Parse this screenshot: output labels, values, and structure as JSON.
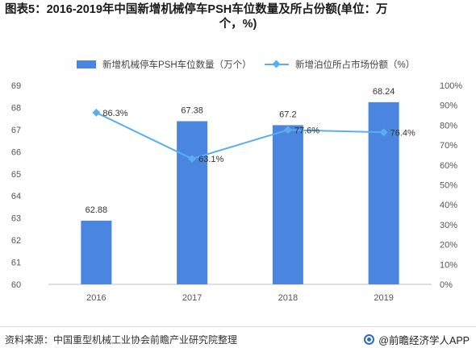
{
  "title": {
    "line1": "图表5：2016-2019年中国新增机械停车PSH车位数量及所占份额(单位：万",
    "line2": "个，%)"
  },
  "legend": {
    "bar_label": "新增机械停车PSH车位数量（万个）",
    "line_label": "新增泊位所占市场份额（%）"
  },
  "footer": {
    "source": "资料来源：中国重型机械工业协会前瞻产业研究院整理",
    "brand": "@前瞻经济学人APP"
  },
  "colors": {
    "bar": "#4a86e0",
    "line": "#5aaef0"
  },
  "chart_data": {
    "type": "bar",
    "categories": [
      "2016",
      "2017",
      "2018",
      "2019"
    ],
    "series": [
      {
        "name": "新增机械停车PSH车位数量（万个）",
        "type": "bar",
        "axis": "left",
        "values": [
          62.88,
          67.38,
          67.2,
          68.24
        ],
        "labels": [
          "62.88",
          "67.38",
          "67.2",
          "68.24"
        ]
      },
      {
        "name": "新增泊位所占市场份额（%）",
        "type": "line",
        "axis": "right",
        "values": [
          86.3,
          63.1,
          77.6,
          76.4
        ],
        "labels": [
          "86.3%",
          "63.1%",
          "77.6%",
          "76.4%"
        ]
      }
    ],
    "y_left": {
      "min": 60,
      "max": 69,
      "step": 1,
      "ticks": [
        "60",
        "61",
        "62",
        "63",
        "64",
        "65",
        "66",
        "67",
        "68",
        "69"
      ]
    },
    "y_right": {
      "min": 0,
      "max": 100,
      "step": 10,
      "ticks": [
        "0%",
        "10%",
        "20%",
        "30%",
        "40%",
        "50%",
        "60%",
        "70%",
        "80%",
        "90%",
        "100%"
      ]
    },
    "grid": false,
    "legend_position": "top"
  }
}
